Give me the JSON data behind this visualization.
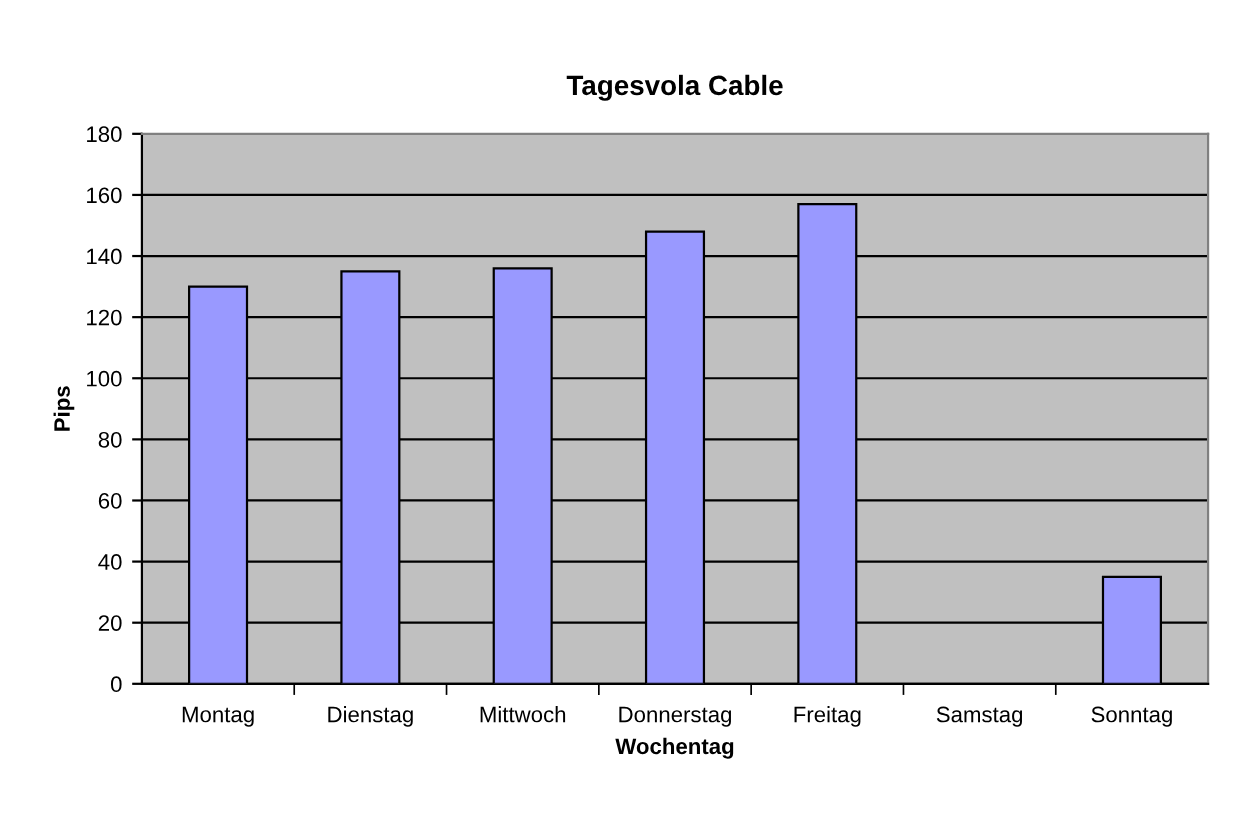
{
  "chart_data": {
    "type": "bar",
    "title": "Tagesvola Cable",
    "xlabel": "Wochentag",
    "ylabel": "Pips",
    "categories": [
      "Montag",
      "Dienstag",
      "Mittwoch",
      "Donnerstag",
      "Freitag",
      "Samstag",
      "Sonntag"
    ],
    "series": [
      {
        "color": "#9999ff",
        "values": [
          130,
          135,
          136,
          148,
          157,
          null,
          35
        ]
      }
    ],
    "ylim": [
      0,
      180
    ],
    "yticks": [
      0,
      20,
      40,
      60,
      80,
      100,
      120,
      140,
      160,
      180
    ],
    "grid": "y",
    "legend": false
  }
}
